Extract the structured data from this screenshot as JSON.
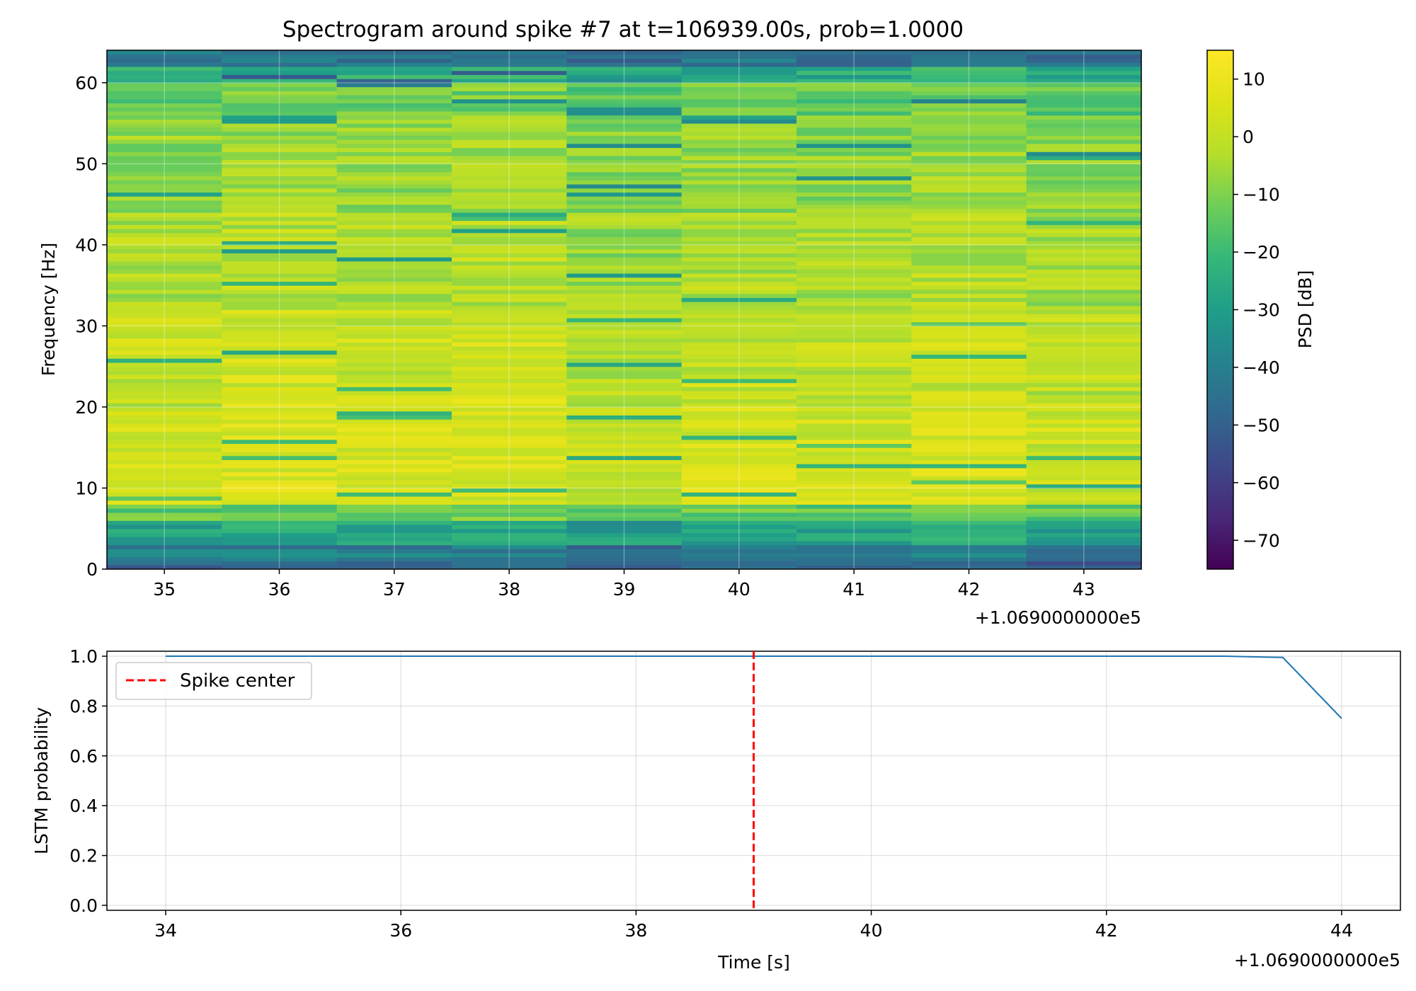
{
  "chart_data": [
    {
      "type": "heatmap",
      "title": "Spectrogram around spike #7 at t=106939.00s, prob=1.0000",
      "xlabel": "",
      "ylabel": "Frequency [Hz]",
      "x_offset_text": "+1.0690000000e5",
      "x_ticks": [
        35,
        36,
        37,
        38,
        39,
        40,
        41,
        42,
        43
      ],
      "x_tick_labels": [
        "35",
        "36",
        "37",
        "38",
        "39",
        "40",
        "41",
        "42",
        "43"
      ],
      "xlim": [
        34.5,
        43.5
      ],
      "y_ticks": [
        0,
        10,
        20,
        30,
        40,
        50,
        60
      ],
      "y_tick_labels": [
        "0",
        "10",
        "20",
        "30",
        "40",
        "50",
        "60"
      ],
      "ylim": [
        0,
        64
      ],
      "time_bins": [
        35,
        36,
        37,
        38,
        39,
        40,
        41,
        42,
        43
      ],
      "freq_bin_width_hz": 0.5,
      "colormap": "viridis",
      "colorbar": {
        "label": "PSD [dB]",
        "range": [
          -75,
          15
        ],
        "ticks": [
          10,
          0,
          -10,
          -20,
          -30,
          -40,
          -50,
          -60,
          -70
        ],
        "tick_labels": [
          "10",
          "0",
          "−10",
          "−20",
          "−30",
          "−40",
          "−50",
          "−60",
          "−70"
        ]
      },
      "grid": true
    },
    {
      "type": "line",
      "title": "",
      "xlabel": "Time [s]",
      "ylabel": "LSTM probability",
      "x_offset_text": "+1.0690000000e5",
      "xlim": [
        33.5,
        44.5
      ],
      "ylim": [
        -0.02,
        1.02
      ],
      "x_ticks": [
        34,
        36,
        38,
        40,
        42,
        44
      ],
      "x_tick_labels": [
        "34",
        "36",
        "38",
        "40",
        "42",
        "44"
      ],
      "y_ticks": [
        0.0,
        0.2,
        0.4,
        0.6,
        0.8,
        1.0
      ],
      "y_tick_labels": [
        "0.0",
        "0.2",
        "0.4",
        "0.6",
        "0.8",
        "1.0"
      ],
      "series": [
        {
          "name": "LSTM probability",
          "color": "#1f77b4",
          "x": [
            34,
            34.5,
            35,
            35.5,
            36,
            36.5,
            37,
            37.5,
            38,
            38.5,
            39,
            39.5,
            40,
            40.5,
            41,
            41.5,
            42,
            42.5,
            43,
            43.5,
            44
          ],
          "values": [
            1.0,
            1.0,
            1.0,
            1.0,
            1.0,
            1.0,
            1.0,
            1.0,
            1.0,
            1.0,
            1.0,
            1.0,
            1.0,
            1.0,
            1.0,
            1.0,
            1.0,
            1.0,
            1.0,
            0.995,
            0.75
          ]
        }
      ],
      "vline": {
        "x": 39,
        "color": "#ff0000",
        "style": "dashed",
        "label": "Spike center"
      },
      "legend": {
        "position": "top-left",
        "entries": [
          "Spike center"
        ]
      },
      "grid": true
    }
  ]
}
